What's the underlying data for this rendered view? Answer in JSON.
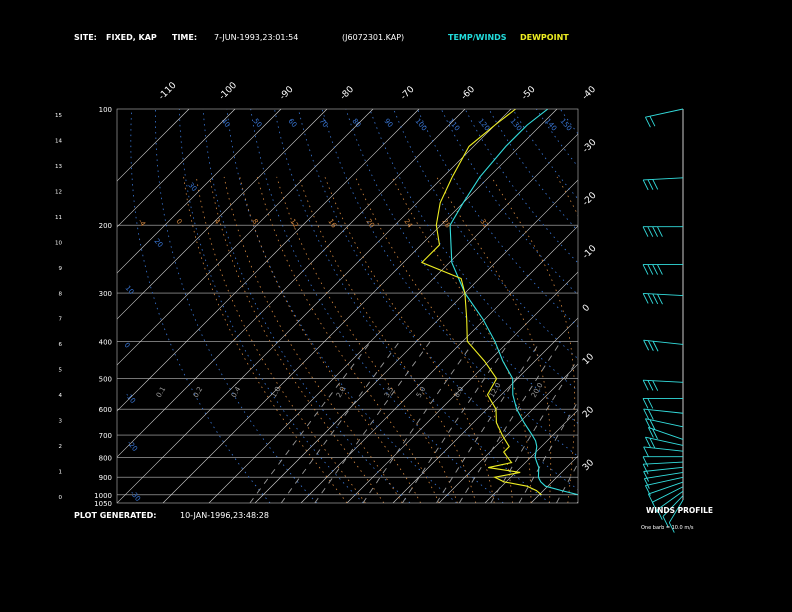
{
  "header": {
    "site_label": "SITE:",
    "site_value": "FIXED, KAP",
    "time_label": "TIME:",
    "time_value": "7-JUN-1993,23:01:54",
    "file_id": "(J6072301.KAP)",
    "temp_winds_label": "TEMP/WINDS",
    "dewpoint_label": "DEWPOINT"
  },
  "footer": {
    "generated_label": "PLOT GENERATED:",
    "generated_value": "10-JAN-1996,23:48:28"
  },
  "winds": {
    "title": "WINDS PROFILE",
    "note": "One barb = 10.0 m/s"
  },
  "colors": {
    "background": "#000000",
    "temperature": "#33dddd",
    "dewpoint": "#eeee22",
    "grid": "#bbbbbb",
    "isotherm_label": "#ffffff",
    "dry_adiabat": "#3a78d8",
    "moist_adiabat": "#d88a40",
    "mixing_ratio": "#9a9a9a",
    "header_temp_winds": "#22dddd",
    "header_dewpoint": "#eeee22"
  },
  "chart_data": {
    "type": "line",
    "diagram": "skew-T log-P",
    "y_scale": "log",
    "pressure_ticks": [
      100,
      200,
      300,
      400,
      500,
      600,
      700,
      800,
      900,
      1000,
      1050
    ],
    "height_ticks": [
      0,
      1,
      2,
      3,
      4,
      5,
      6,
      7,
      8,
      9,
      10,
      11,
      12,
      13,
      14,
      15
    ],
    "temp_top_ticks": [
      -110,
      -100,
      -90,
      -80,
      -70,
      -60,
      -50,
      -40
    ],
    "temp_right_ticks": [
      -30,
      -20,
      -10,
      0,
      10,
      20,
      30
    ],
    "dry_adiabat_labels": [
      "-30",
      "-20",
      "-10",
      "0",
      "10",
      "20",
      "30",
      "40",
      "50",
      "60",
      "70",
      "80",
      "90",
      "100",
      "110",
      "120",
      "130",
      "140",
      "150"
    ],
    "moist_adiabat_labels": [
      "-4",
      "0",
      "4",
      "8",
      "12",
      "16",
      "20",
      "24",
      "28",
      "32"
    ],
    "mixing_ratio_labels": [
      "0.1",
      "0.2",
      "0.4",
      "1.0",
      "2.0",
      "3.5",
      "5.0",
      "8.0",
      "12.0",
      "20.0"
    ],
    "series": [
      {
        "name": "TEMP/WINDS",
        "color": "#33dddd",
        "points": [
          [
            1000,
            28.5
          ],
          [
            975,
            24
          ],
          [
            950,
            19.5
          ],
          [
            925,
            17.5
          ],
          [
            900,
            16
          ],
          [
            875,
            15
          ],
          [
            850,
            14
          ],
          [
            825,
            12.5
          ],
          [
            800,
            11
          ],
          [
            775,
            10
          ],
          [
            750,
            9
          ],
          [
            725,
            7.5
          ],
          [
            700,
            5.5
          ],
          [
            650,
            1
          ],
          [
            600,
            -3.5
          ],
          [
            550,
            -7.5
          ],
          [
            500,
            -11
          ],
          [
            450,
            -17
          ],
          [
            400,
            -23
          ],
          [
            350,
            -30.5
          ],
          [
            300,
            -40
          ],
          [
            250,
            -49.5
          ],
          [
            200,
            -58
          ],
          [
            175,
            -60
          ],
          [
            150,
            -62
          ],
          [
            125,
            -63
          ],
          [
            110,
            -63
          ],
          [
            100,
            -62
          ]
        ]
      },
      {
        "name": "DEWPOINT",
        "color": "#eeee22",
        "points": [
          [
            1000,
            20.5
          ],
          [
            975,
            18.5
          ],
          [
            950,
            15.5
          ],
          [
            925,
            9.5
          ],
          [
            900,
            6.5
          ],
          [
            875,
            11
          ],
          [
            850,
            3
          ],
          [
            825,
            7
          ],
          [
            800,
            5
          ],
          [
            775,
            3
          ],
          [
            750,
            3
          ],
          [
            725,
            1
          ],
          [
            700,
            -1
          ],
          [
            650,
            -5
          ],
          [
            600,
            -8
          ],
          [
            550,
            -13
          ],
          [
            500,
            -14.5
          ],
          [
            450,
            -21
          ],
          [
            400,
            -29
          ],
          [
            350,
            -34
          ],
          [
            300,
            -40
          ],
          [
            275,
            -44
          ],
          [
            250,
            -56
          ],
          [
            225,
            -56
          ],
          [
            200,
            -61
          ],
          [
            175,
            -65
          ],
          [
            150,
            -68
          ],
          [
            125,
            -71
          ],
          [
            110,
            -70
          ],
          [
            100,
            -69
          ]
        ]
      }
    ],
    "winds": [
      {
        "pressure": 1000,
        "dir": 200,
        "speed": 5
      },
      {
        "pressure": 975,
        "dir": 210,
        "speed": 6
      },
      {
        "pressure": 950,
        "dir": 220,
        "speed": 7
      },
      {
        "pressure": 925,
        "dir": 230,
        "speed": 8
      },
      {
        "pressure": 900,
        "dir": 240,
        "speed": 9
      },
      {
        "pressure": 875,
        "dir": 250,
        "speed": 10
      },
      {
        "pressure": 850,
        "dir": 255,
        "speed": 11
      },
      {
        "pressure": 825,
        "dir": 260,
        "speed": 12
      },
      {
        "pressure": 800,
        "dir": 265,
        "speed": 13
      },
      {
        "pressure": 775,
        "dir": 270,
        "speed": 14
      },
      {
        "pressure": 750,
        "dir": 280,
        "speed": 14
      },
      {
        "pressure": 725,
        "dir": 290,
        "speed": 15
      },
      {
        "pressure": 700,
        "dir": 300,
        "speed": 16
      },
      {
        "pressure": 650,
        "dir": 290,
        "speed": 18
      },
      {
        "pressure": 600,
        "dir": 280,
        "speed": 20
      },
      {
        "pressure": 550,
        "dir": 270,
        "speed": 22
      },
      {
        "pressure": 500,
        "dir": 275,
        "speed": 25
      },
      {
        "pressure": 400,
        "dir": 280,
        "speed": 32
      },
      {
        "pressure": 300,
        "dir": 275,
        "speed": 38
      },
      {
        "pressure": 250,
        "dir": 270,
        "speed": 40
      },
      {
        "pressure": 200,
        "dir": 270,
        "speed": 35
      },
      {
        "pressure": 150,
        "dir": 265,
        "speed": 28
      },
      {
        "pressure": 100,
        "dir": 250,
        "speed": 20
      }
    ]
  }
}
